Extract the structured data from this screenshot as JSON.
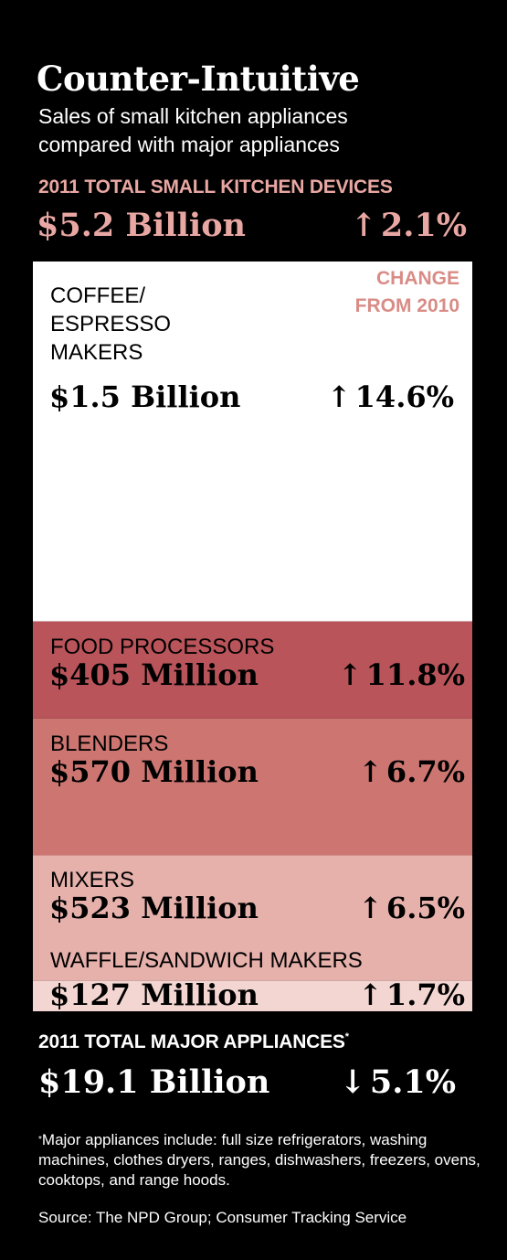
{
  "header": {
    "title": "Counter-Intuitive",
    "subtitle_line1": "Sales of small kitchen appliances",
    "subtitle_line2": "compared with major appliances"
  },
  "small_total": {
    "label": "2011 TOTAL SMALL KITCHEN DEVICES",
    "value": "$5.2 Billion",
    "change": "2.1%",
    "direction": "up"
  },
  "change_header": {
    "line1": "CHANGE",
    "line2": "FROM 2010"
  },
  "chart_data": {
    "type": "bar",
    "layout": "stacked-vertical",
    "title": "2011 TOTAL SMALL KITCHEN DEVICES",
    "unit": "USD millions",
    "categories": [
      "COFFEE/ESPRESSO MAKERS",
      "FOOD PROCESSORS",
      "BLENDERS",
      "MIXERS",
      "WAFFLE/SANDWICH MAKERS"
    ],
    "values": [
      1500,
      405,
      570,
      523,
      127
    ],
    "value_labels": [
      "$1.5 Billion",
      "$405 Million",
      "$570 Million",
      "$523 Million",
      "$127 Million"
    ],
    "changes": [
      "14.6%",
      "11.8%",
      "6.7%",
      "6.5%",
      "1.7%"
    ],
    "change_directions": [
      "up",
      "up",
      "up",
      "up",
      "up"
    ],
    "label_lines": [
      [
        "COFFEE/",
        "ESPRESSO",
        "MAKERS"
      ],
      [
        "FOOD PROCESSORS"
      ],
      [
        "BLENDERS"
      ],
      [
        "MIXERS"
      ],
      [
        "WAFFLE/SANDWICH MAKERS"
      ]
    ],
    "colors": [
      "#ffffff",
      "#b9545a",
      "#cd7671",
      "#e6b0ab",
      "#f3d6d2"
    ]
  },
  "major_total": {
    "label": "2011 TOTAL MAJOR APPLIANCES",
    "label_mark": "*",
    "value": "$19.1 Billion",
    "change": "5.1%",
    "direction": "down"
  },
  "footnote": {
    "mark": "*",
    "text": "Major appliances include: full size refrigerators, washing machines, clothes dryers, ranges, dishwashers, freezers, ovens, cooktops, and range hoods."
  },
  "source": "Source: The NPD Group; Consumer Tracking Service",
  "icons": {
    "up": "up-arrow-icon",
    "down": "down-arrow-icon"
  }
}
